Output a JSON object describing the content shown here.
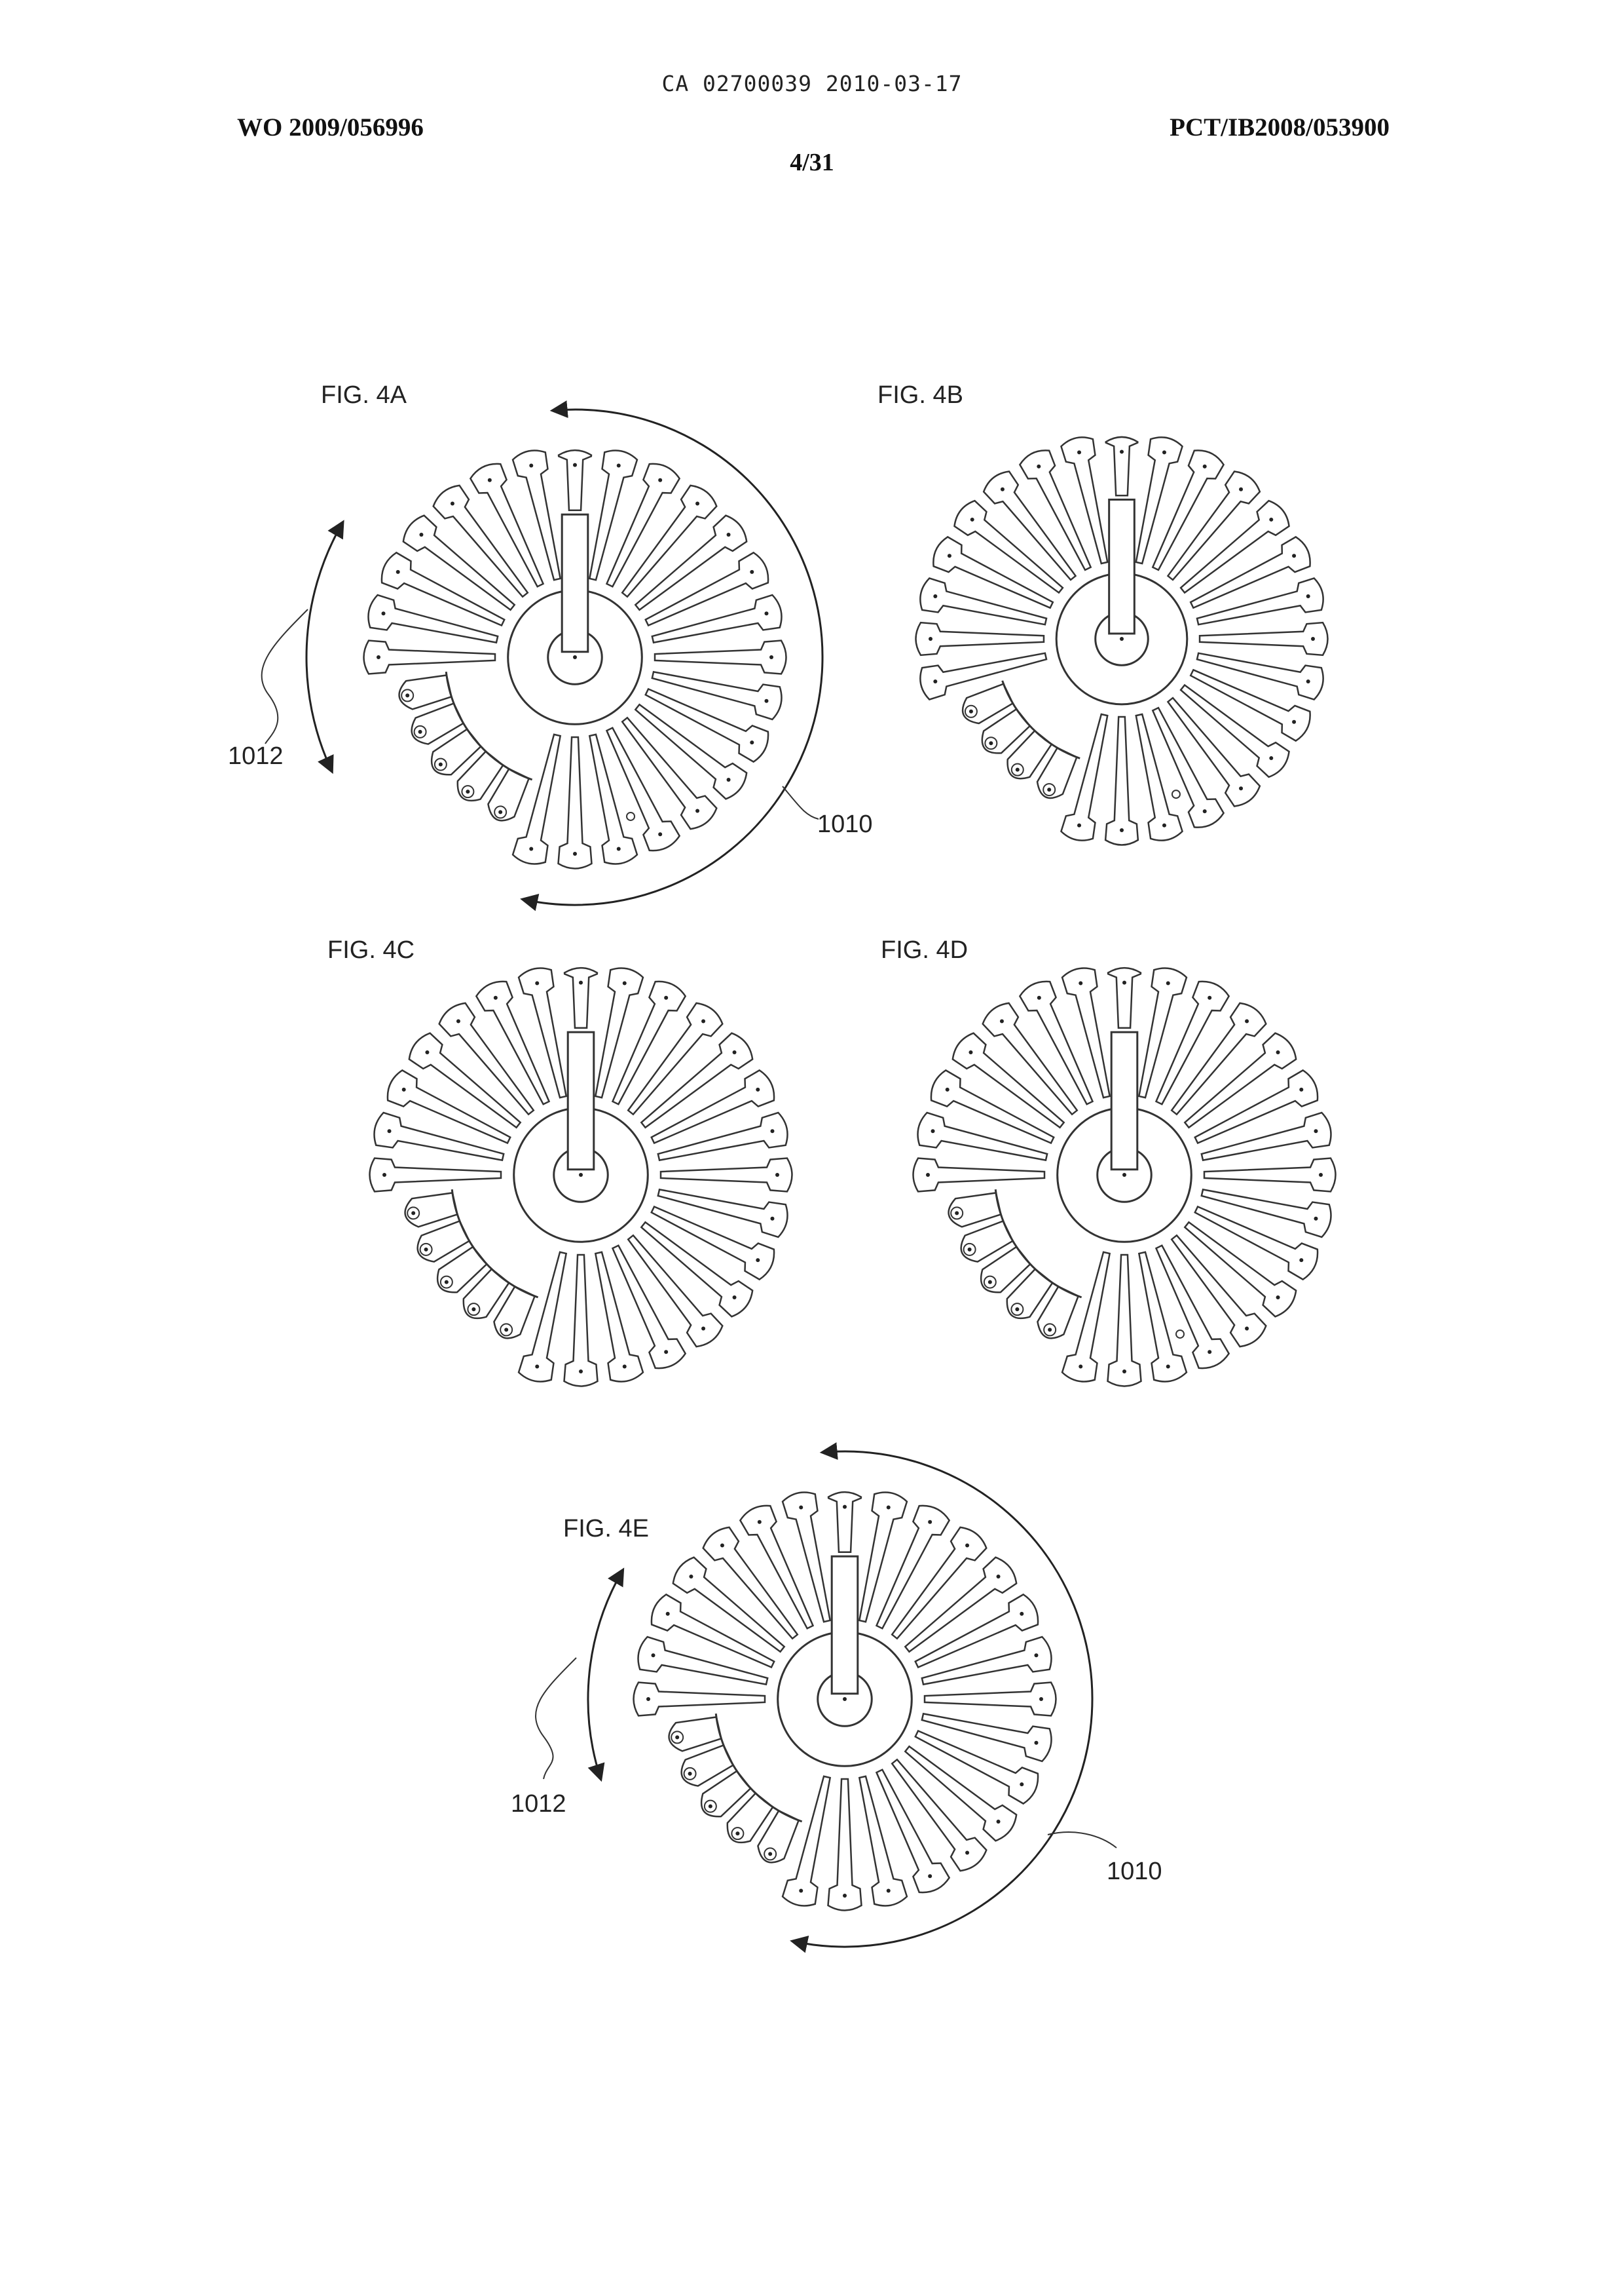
{
  "header": {
    "ca_line": "CA 02700039 2010-03-17",
    "publication_number": "WO 2009/056996",
    "application_number": "PCT/IB2008/053900",
    "sheet": "4/31"
  },
  "figures": [
    {
      "label": "FIG. 4A",
      "refs": [
        "1012",
        "1010"
      ]
    },
    {
      "label": "FIG. 4B",
      "refs": []
    },
    {
      "label": "FIG. 4C",
      "refs": []
    },
    {
      "label": "FIG. 4D",
      "refs": []
    },
    {
      "label": "FIG. 4E",
      "refs": [
        "1012",
        "1010"
      ]
    }
  ]
}
